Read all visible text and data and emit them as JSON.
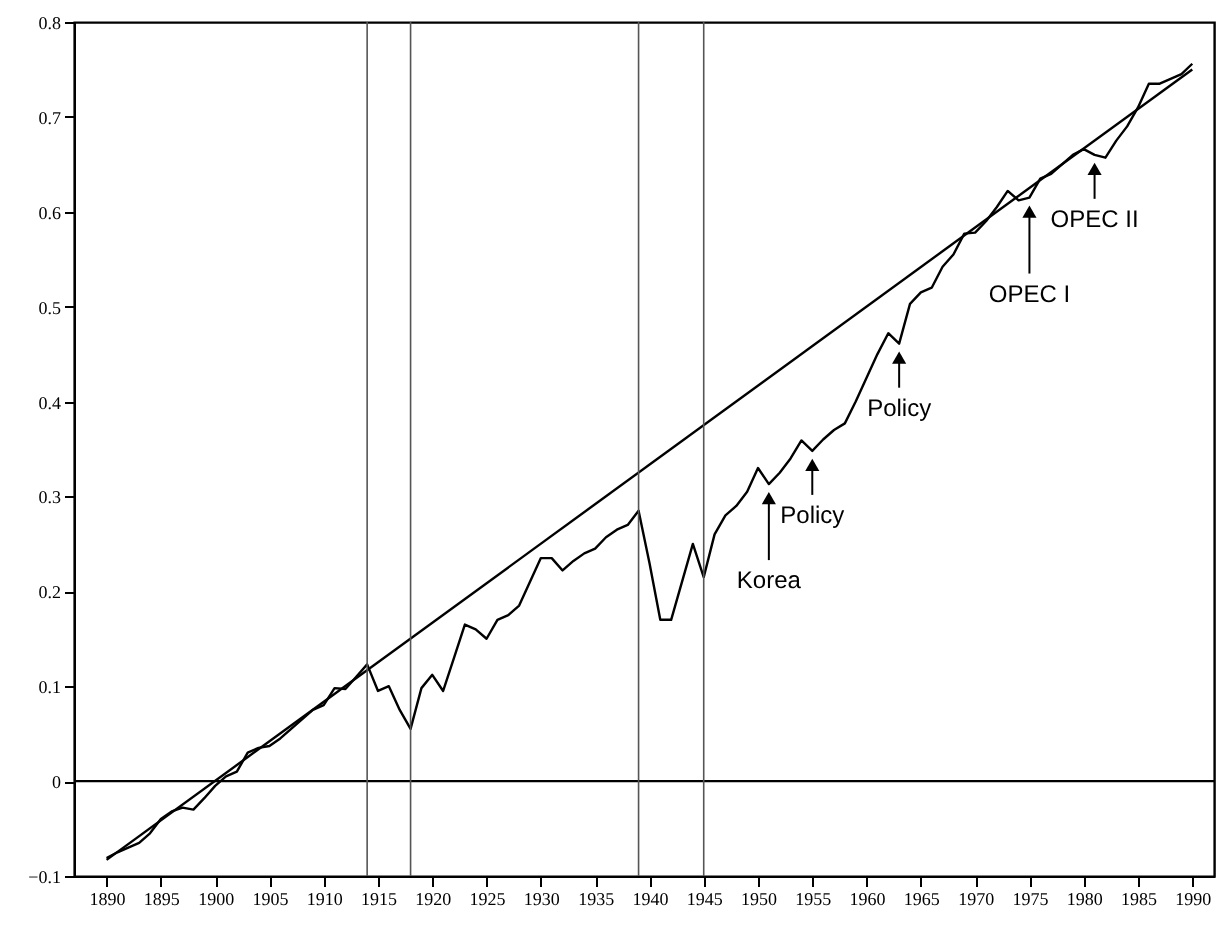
{
  "chart_data": {
    "type": "line",
    "x": [
      1890,
      1891,
      1892,
      1893,
      1894,
      1895,
      1896,
      1897,
      1898,
      1899,
      1900,
      1901,
      1902,
      1903,
      1904,
      1905,
      1906,
      1907,
      1908,
      1909,
      1910,
      1911,
      1912,
      1913,
      1914,
      1915,
      1916,
      1917,
      1918,
      1919,
      1920,
      1921,
      1922,
      1923,
      1924,
      1925,
      1926,
      1927,
      1928,
      1929,
      1930,
      1931,
      1932,
      1933,
      1934,
      1935,
      1936,
      1937,
      1938,
      1939,
      1940,
      1941,
      1942,
      1943,
      1944,
      1945,
      1946,
      1947,
      1948,
      1949,
      1950,
      1951,
      1952,
      1953,
      1954,
      1955,
      1956,
      1957,
      1958,
      1959,
      1960,
      1961,
      1962,
      1963,
      1964,
      1965,
      1966,
      1967,
      1968,
      1969,
      1970,
      1971,
      1972,
      1973,
      1974,
      1975,
      1976,
      1977,
      1978,
      1979,
      1980,
      1981,
      1982,
      1983,
      1984,
      1985,
      1986,
      1987,
      1988,
      1989,
      1990
    ],
    "series": [
      {
        "color": "#000000",
        "values": [
          -0.081,
          -0.075,
          -0.07,
          -0.065,
          -0.055,
          -0.04,
          -0.032,
          -0.028,
          -0.03,
          -0.018,
          -0.005,
          0.005,
          0.01,
          0.03,
          0.035,
          0.037,
          0.045,
          0.055,
          0.065,
          0.075,
          0.08,
          0.098,
          0.097,
          0.11,
          0.123,
          0.095,
          0.1,
          0.075,
          0.055,
          0.098,
          0.112,
          0.095,
          0.13,
          0.165,
          0.16,
          0.15,
          0.17,
          0.175,
          0.185,
          0.21,
          0.235,
          0.235,
          0.222,
          0.232,
          0.24,
          0.245,
          0.257,
          0.265,
          0.27,
          0.285,
          0.23,
          0.17,
          0.17,
          0.21,
          0.25,
          0.215,
          0.26,
          0.28,
          0.29,
          0.305,
          0.33,
          0.313,
          0.325,
          0.34,
          0.359,
          0.348,
          0.36,
          0.37,
          0.377,
          0.4,
          0.425,
          0.45,
          0.472,
          0.461,
          0.503,
          0.515,
          0.52,
          0.542,
          0.555,
          0.577,
          0.578,
          0.59,
          0.605,
          0.622,
          0.612,
          0.615,
          0.635,
          0.64,
          0.65,
          0.66,
          0.666,
          0.66,
          0.657,
          0.675,
          0.69,
          0.71,
          0.735,
          0.735,
          0.74,
          0.745,
          0.756
        ]
      },
      {
        "type": "line",
        "color": "#000000",
        "x": [
          1890,
          1990
        ],
        "values": [
          -0.083,
          0.75
        ]
      }
    ],
    "xlim": [
      1887,
      1992
    ],
    "xticks": [
      1890,
      1895,
      1900,
      1905,
      1910,
      1915,
      1920,
      1925,
      1930,
      1935,
      1940,
      1945,
      1950,
      1955,
      1960,
      1965,
      1970,
      1975,
      1980,
      1985,
      1990
    ],
    "ylim": [
      -0.1,
      0.8
    ],
    "yticks": [
      -0.1,
      0,
      0.1,
      0.2,
      0.3,
      0.4,
      0.5,
      0.6,
      0.7,
      0.8
    ],
    "grid": false,
    "ref_lines": [
      {
        "axis": "y",
        "value": 0,
        "color": "#000000"
      },
      {
        "axis": "x",
        "value": 1914,
        "color": "#555555"
      },
      {
        "axis": "x",
        "value": 1918,
        "color": "#555555"
      },
      {
        "axis": "x",
        "value": 1939,
        "color": "#555555"
      },
      {
        "axis": "x",
        "value": 1945,
        "color": "#555555"
      }
    ],
    "annotations": [
      {
        "text": "Korea",
        "x": 1951,
        "y": 0.313
      },
      {
        "text": "Policy",
        "x": 1955,
        "y": 0.348
      },
      {
        "text": "Policy",
        "x": 1963,
        "y": 0.461
      },
      {
        "text": "OPEC I",
        "x": 1975,
        "y": 0.615
      },
      {
        "text": "OPEC II",
        "x": 1981,
        "y": 0.66
      }
    ]
  }
}
